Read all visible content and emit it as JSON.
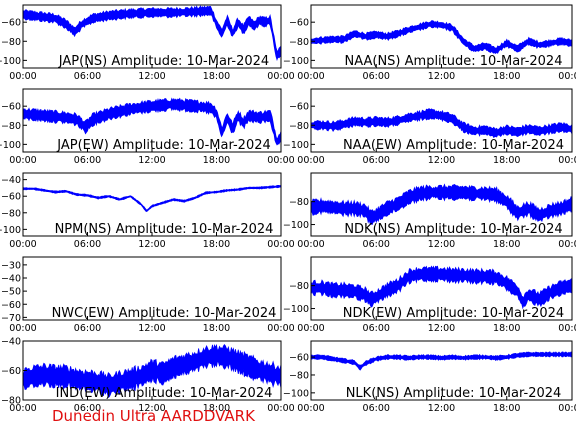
{
  "footer_label": "Dunedin Ultra AARDDVARK",
  "colors": {
    "trace": "#0000ff",
    "axis": "#000000",
    "footer": "#e01010"
  },
  "chart_data": [
    {
      "type": "line",
      "title": "JAP(NS) Amplitude: 10-Mar-2024",
      "x_ticks": [
        "00:00",
        "06:00",
        "12:00",
        "18:00",
        "00:00"
      ],
      "y_ticks": [
        -60,
        -80,
        -100
      ],
      "ylim": [
        -108,
        -42
      ],
      "x_hours": [
        0,
        24
      ],
      "grid": false,
      "series": [
        {
          "x_hours": [
            0,
            1.5,
            3,
            4,
            4.8,
            5.5,
            6.5,
            8,
            10,
            12,
            14,
            16,
            17.5,
            18,
            18.5,
            19,
            19.5,
            20,
            20.5,
            21,
            21.5,
            22,
            22.5,
            23,
            23.6,
            24
          ],
          "values": [
            -52,
            -54,
            -56,
            -62,
            -70,
            -62,
            -56,
            -53,
            -51,
            -50,
            -50,
            -49,
            -48,
            -62,
            -72,
            -58,
            -72,
            -60,
            -68,
            -58,
            -64,
            -58,
            -60,
            -58,
            -95,
            -90
          ],
          "band": 4
        }
      ]
    },
    {
      "type": "line",
      "title": "NAA(NS) Amplitude: 10-Mar-2024",
      "x_ticks": [
        "00:00",
        "06:00",
        "12:00",
        "18:00",
        "00:00"
      ],
      "y_ticks": [
        -60,
        -80,
        -100
      ],
      "ylim": [
        -108,
        -42
      ],
      "x_hours": [
        0,
        24
      ],
      "grid": false,
      "series": [
        {
          "x_hours": [
            0,
            1,
            2,
            3,
            4,
            5,
            6,
            7,
            8,
            9,
            10,
            11,
            12,
            13,
            14,
            15,
            16,
            17,
            18,
            19,
            20,
            21,
            22,
            23,
            24
          ],
          "values": [
            -80,
            -79,
            -78,
            -78,
            -72,
            -75,
            -73,
            -75,
            -72,
            -68,
            -65,
            -62,
            -63,
            -66,
            -80,
            -88,
            -85,
            -90,
            -82,
            -88,
            -80,
            -84,
            -82,
            -80,
            -82
          ],
          "band": 3
        }
      ]
    },
    {
      "type": "line",
      "title": "JAP(EW) Amplitude: 10-Mar-2024",
      "x_ticks": [
        "00:00",
        "06:00",
        "12:00",
        "18:00",
        "00:00"
      ],
      "y_ticks": [
        -60,
        -80,
        -100
      ],
      "ylim": [
        -108,
        -42
      ],
      "x_hours": [
        0,
        24
      ],
      "grid": false,
      "series": [
        {
          "x_hours": [
            0,
            2,
            4,
            5,
            5.8,
            6.5,
            8,
            10,
            12,
            14,
            16,
            17.5,
            18,
            18.5,
            19,
            19.5,
            20,
            20.5,
            21,
            22,
            23,
            23.6,
            24
          ],
          "values": [
            -68,
            -70,
            -72,
            -74,
            -82,
            -74,
            -68,
            -63,
            -60,
            -58,
            -60,
            -62,
            -68,
            -88,
            -72,
            -84,
            -70,
            -78,
            -70,
            -72,
            -70,
            -98,
            -92
          ],
          "band": 5
        }
      ]
    },
    {
      "type": "line",
      "title": "NAA(EW) Amplitude: 10-Mar-2024",
      "x_ticks": [
        "00:00",
        "06:00",
        "12:00",
        "18:00",
        "00:00"
      ],
      "y_ticks": [
        -60,
        -80,
        -100
      ],
      "ylim": [
        -108,
        -42
      ],
      "x_hours": [
        0,
        24
      ],
      "grid": false,
      "series": [
        {
          "x_hours": [
            0,
            1,
            2,
            3,
            4,
            5,
            6,
            7,
            8,
            9,
            10,
            11,
            12,
            13,
            14,
            15,
            16,
            17,
            18,
            19,
            20,
            21,
            22,
            23,
            24
          ],
          "values": [
            -80,
            -80,
            -81,
            -79,
            -76,
            -77,
            -76,
            -77,
            -75,
            -72,
            -70,
            -68,
            -70,
            -73,
            -82,
            -86,
            -85,
            -88,
            -85,
            -87,
            -84,
            -86,
            -84,
            -82,
            -84
          ],
          "band": 4
        }
      ]
    },
    {
      "type": "line",
      "title": "NPM(NS) Amplitude: 10-Mar-2024",
      "x_ticks": [
        "00:00",
        "06:00",
        "12:00",
        "18:00",
        "00:00"
      ],
      "y_ticks": [
        -40,
        -60,
        -80,
        -100
      ],
      "ylim": [
        -108,
        -32
      ],
      "x_hours": [
        0,
        24
      ],
      "grid": false,
      "series": [
        {
          "x_hours": [
            0,
            1,
            2,
            3,
            4,
            5,
            6,
            7,
            8,
            9,
            10,
            11,
            11.5,
            12,
            13,
            14,
            15,
            16,
            17,
            18,
            19,
            20,
            21,
            22,
            23,
            24
          ],
          "values": [
            -51,
            -51,
            -53,
            -55,
            -54,
            -58,
            -59,
            -62,
            -60,
            -64,
            -60,
            -70,
            -78,
            -72,
            -68,
            -64,
            -66,
            -62,
            -56,
            -55,
            -53,
            -52,
            -50,
            -50,
            -49,
            -48
          ],
          "band": 1
        }
      ]
    },
    {
      "type": "line",
      "title": "NDK(NS) Amplitude: 10-Mar-2024",
      "x_ticks": [
        "00:00",
        "06:00",
        "12:00",
        "18:00",
        "00:00"
      ],
      "y_ticks": [
        -80,
        -100
      ],
      "ylim": [
        -110,
        -55
      ],
      "x_hours": [
        0,
        24
      ],
      "grid": false,
      "series": [
        {
          "x_hours": [
            0,
            1,
            2,
            3,
            4,
            5,
            5.5,
            6,
            7,
            8,
            9,
            10,
            11,
            12,
            13,
            14,
            15,
            16,
            17,
            18,
            19,
            20,
            21,
            22,
            23,
            24
          ],
          "values": [
            -85,
            -84,
            -85,
            -86,
            -86,
            -88,
            -94,
            -92,
            -86,
            -82,
            -76,
            -73,
            -72,
            -72,
            -72,
            -72,
            -73,
            -73,
            -74,
            -80,
            -90,
            -86,
            -92,
            -88,
            -86,
            -82
          ],
          "band": 5
        }
      ]
    },
    {
      "type": "line",
      "title": "NWC(EW) Amplitude: 10-Mar-2024",
      "x_ticks": [
        "00:00",
        "06:00",
        "12:00",
        "18:00",
        "00:00"
      ],
      "y_ticks": [
        -30,
        -40,
        -50,
        -60,
        -70
      ],
      "ylim": [
        -72,
        -24
      ],
      "x_hours": [
        0,
        24
      ],
      "grid": false,
      "series": []
    },
    {
      "type": "line",
      "title": "NDK(EW) Amplitude: 10-Mar-2024",
      "x_ticks": [
        "00:00",
        "06:00",
        "12:00",
        "18:00",
        "00:00"
      ],
      "y_ticks": [
        -80,
        -100
      ],
      "ylim": [
        -110,
        -55
      ],
      "x_hours": [
        0,
        24
      ],
      "grid": false,
      "series": [
        {
          "x_hours": [
            0,
            1,
            2,
            3,
            4,
            5,
            5.5,
            6,
            7,
            8,
            9,
            10,
            11,
            12,
            13,
            14,
            15,
            16,
            17,
            18,
            19,
            19.5,
            20,
            21,
            22,
            23,
            24
          ],
          "values": [
            -82,
            -82,
            -84,
            -84,
            -85,
            -88,
            -92,
            -90,
            -84,
            -80,
            -72,
            -70,
            -70,
            -70,
            -71,
            -71,
            -72,
            -72,
            -73,
            -78,
            -85,
            -95,
            -88,
            -92,
            -86,
            -82,
            -80
          ],
          "band": 5
        }
      ]
    },
    {
      "type": "line",
      "title": "IND(EW) Amplitude: 10-Mar-2024",
      "x_ticks": [
        "00:00",
        "06:00",
        "12:00",
        "18:00",
        "00:00"
      ],
      "y_ticks": [
        -40,
        -60,
        -80
      ],
      "ylim": [
        -80,
        -40
      ],
      "x_hours": [
        0,
        24
      ],
      "grid": false,
      "series": [
        {
          "x_hours": [
            0,
            1,
            2,
            3,
            4,
            5,
            6,
            7,
            8,
            9,
            10,
            11,
            12,
            13,
            14,
            15,
            16,
            17,
            18,
            19,
            20,
            21,
            22,
            23,
            24
          ],
          "values": [
            -66,
            -64,
            -63,
            -64,
            -64,
            -66,
            -67,
            -68,
            -70,
            -68,
            -66,
            -64,
            -60,
            -62,
            -58,
            -56,
            -54,
            -51,
            -50,
            -51,
            -54,
            -57,
            -60,
            -62,
            -64
          ],
          "band": 6
        }
      ]
    },
    {
      "type": "line",
      "title": "NLK(NS) Amplitude: 10-Mar-2024",
      "x_ticks": [
        "00:00",
        "06:00",
        "12:00",
        "18:00",
        "00:00"
      ],
      "y_ticks": [
        -60,
        -80,
        -100
      ],
      "ylim": [
        -108,
        -42
      ],
      "x_hours": [
        0,
        24
      ],
      "grid": false,
      "series": [
        {
          "x_hours": [
            0,
            1,
            2,
            3,
            4,
            4.5,
            5,
            6,
            7,
            8,
            9,
            10,
            11,
            12,
            13,
            14,
            15,
            16,
            17,
            18,
            19,
            20,
            21,
            22,
            23,
            24
          ],
          "values": [
            -60,
            -60,
            -62,
            -64,
            -66,
            -72,
            -67,
            -62,
            -60,
            -60,
            -61,
            -60,
            -60,
            -61,
            -60,
            -61,
            -60,
            -60,
            -61,
            -60,
            -58,
            -57,
            -57,
            -57,
            -57,
            -57
          ],
          "band": 2
        }
      ]
    }
  ]
}
